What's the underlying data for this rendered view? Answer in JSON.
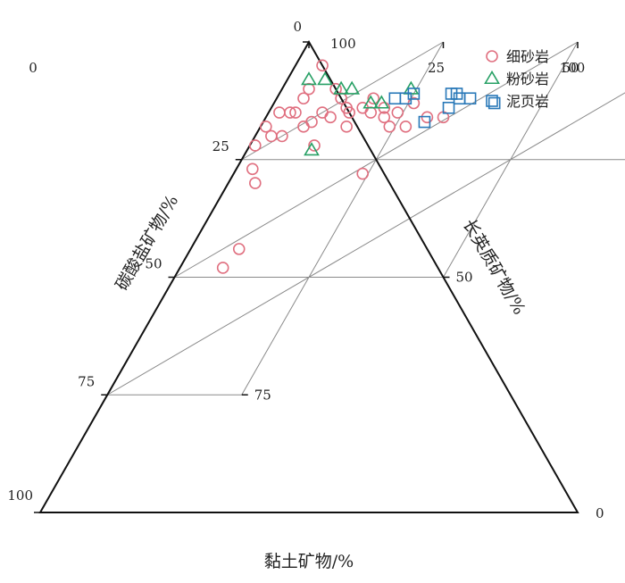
{
  "colors": {
    "sandstone": "#e07080",
    "siltstone": "#27a065",
    "mudstone": "#2878b8",
    "grid": "#8a8a8a",
    "frame": "#111111"
  },
  "chart_data": {
    "type": "scatter",
    "subtype": "ternary",
    "title": "",
    "axes": {
      "clay": {
        "label": "黏土矿物/%",
        "ticks": [
          "0",
          "25",
          "50",
          "75",
          "100"
        ]
      },
      "carbonate": {
        "label": "碳酸盐矿物/%",
        "ticks": [
          "0",
          "25",
          "50",
          "75",
          "100"
        ]
      },
      "feldspar_quartz": {
        "label": "长英质矿物/%",
        "ticks": [
          "0",
          "25",
          "50",
          "75",
          "100"
        ]
      }
    },
    "grid": true,
    "grid_step": 25,
    "legend_position": "top-right",
    "series": [
      {
        "name": "细砂岩",
        "marker": "circle",
        "color": "#e07080",
        "points": [
          {
            "clay": 5,
            "carbonate": 5,
            "feldspar_quartz": 90
          },
          {
            "clay": 5,
            "carbonate": 10,
            "feldspar_quartz": 85
          },
          {
            "clay": 5,
            "carbonate": 12,
            "feldspar_quartz": 83
          },
          {
            "clay": 2,
            "carbonate": 15,
            "feldspar_quartz": 83
          },
          {
            "clay": 4,
            "carbonate": 15,
            "feldspar_quartz": 81
          },
          {
            "clay": 1,
            "carbonate": 18,
            "feldspar_quartz": 81
          },
          {
            "clay": 5,
            "carbonate": 15,
            "feldspar_quartz": 80
          },
          {
            "clay": 10,
            "carbonate": 10,
            "feldspar_quartz": 80
          },
          {
            "clay": 3,
            "carbonate": 20,
            "feldspar_quartz": 77
          },
          {
            "clay": 1,
            "carbonate": 22,
            "feldspar_quartz": 77
          },
          {
            "clay": 5,
            "carbonate": 20,
            "feldspar_quartz": 75
          },
          {
            "clay": 8,
            "carbonate": 18,
            "feldspar_quartz": 74
          },
          {
            "clay": 12,
            "carbonate": 12,
            "feldspar_quartz": 76
          },
          {
            "clay": 10,
            "carbonate": 15,
            "feldspar_quartz": 75
          },
          {
            "clay": 9,
            "carbonate": 17,
            "feldspar_quartz": 74
          },
          {
            "clay": 12,
            "carbonate": 16,
            "feldspar_quartz": 72
          },
          {
            "clay": 14,
            "carbonate": 14,
            "feldspar_quartz": 72
          },
          {
            "clay": 15,
            "carbonate": 15,
            "feldspar_quartz": 70
          },
          {
            "clay": 18,
            "carbonate": 12,
            "feldspar_quartz": 70
          },
          {
            "clay": 17,
            "carbonate": 14,
            "feldspar_quartz": 69
          },
          {
            "clay": 16,
            "carbonate": 18,
            "feldspar_quartz": 66
          },
          {
            "clay": 19,
            "carbonate": 15,
            "feldspar_quartz": 66
          },
          {
            "clay": 12,
            "carbonate": 22,
            "feldspar_quartz": 66
          },
          {
            "clay": 21,
            "carbonate": 14,
            "feldspar_quartz": 65
          },
          {
            "clay": 22,
            "carbonate": 16,
            "feldspar_quartz": 62
          },
          {
            "clay": 24,
            "carbonate": 15,
            "feldspar_quartz": 61
          },
          {
            "clay": 26,
            "carbonate": 13,
            "feldspar_quartz": 61
          },
          {
            "clay": 24,
            "carbonate": 18,
            "feldspar_quartz": 58
          },
          {
            "clay": 27,
            "carbonate": 18,
            "feldspar_quartz": 55
          },
          {
            "clay": 30,
            "carbonate": 16,
            "feldspar_quartz": 54
          },
          {
            "clay": 33,
            "carbonate": 16,
            "feldspar_quartz": 51
          },
          {
            "clay": 24,
            "carbonate": 28,
            "feldspar_quartz": 48
          },
          {
            "clay": 9,
            "carbonate": 44,
            "feldspar_quartz": 47
          },
          {
            "clay": 8,
            "carbonate": 48,
            "feldspar_quartz": 44
          },
          {
            "clay": 3,
            "carbonate": 27,
            "feldspar_quartz": 70
          },
          {
            "clay": 5,
            "carbonate": 30,
            "feldspar_quartz": 65
          }
        ]
      },
      {
        "name": "粉砂岩",
        "marker": "triangle",
        "color": "#27a065",
        "points": [
          {
            "clay": 4,
            "carbonate": 8,
            "feldspar_quartz": 88
          },
          {
            "clay": 7,
            "carbonate": 8,
            "feldspar_quartz": 85
          },
          {
            "clay": 11,
            "carbonate": 10,
            "feldspar_quartz": 79
          },
          {
            "clay": 13,
            "carbonate": 10,
            "feldspar_quartz": 77
          },
          {
            "clay": 18,
            "carbonate": 13,
            "feldspar_quartz": 69
          },
          {
            "clay": 20,
            "carbonate": 13,
            "feldspar_quartz": 67
          },
          {
            "clay": 24,
            "carbonate": 10,
            "feldspar_quartz": 66
          },
          {
            "clay": 12,
            "carbonate": 23,
            "feldspar_quartz": 65
          }
        ]
      },
      {
        "name": "泥页岩",
        "marker": "square",
        "color": "#2878b8",
        "points": [
          {
            "clay": 22,
            "carbonate": 12,
            "feldspar_quartz": 66
          },
          {
            "clay": 24,
            "carbonate": 12,
            "feldspar_quartz": 64
          },
          {
            "clay": 25,
            "carbonate": 11,
            "feldspar_quartz": 64
          },
          {
            "clay": 32,
            "carbonate": 11,
            "feldspar_quartz": 57
          },
          {
            "clay": 33,
            "carbonate": 11,
            "feldspar_quartz": 56
          },
          {
            "clay": 34,
            "carbonate": 12,
            "feldspar_quartz": 54
          },
          {
            "clay": 33,
            "carbonate": 14,
            "feldspar_quartz": 53
          },
          {
            "clay": 30,
            "carbonate": 17,
            "feldspar_quartz": 53
          },
          {
            "clay": 36,
            "carbonate": 12,
            "feldspar_quartz": 52
          },
          {
            "clay": 41,
            "carbonate": 13,
            "feldspar_quartz": 46
          }
        ]
      }
    ]
  }
}
